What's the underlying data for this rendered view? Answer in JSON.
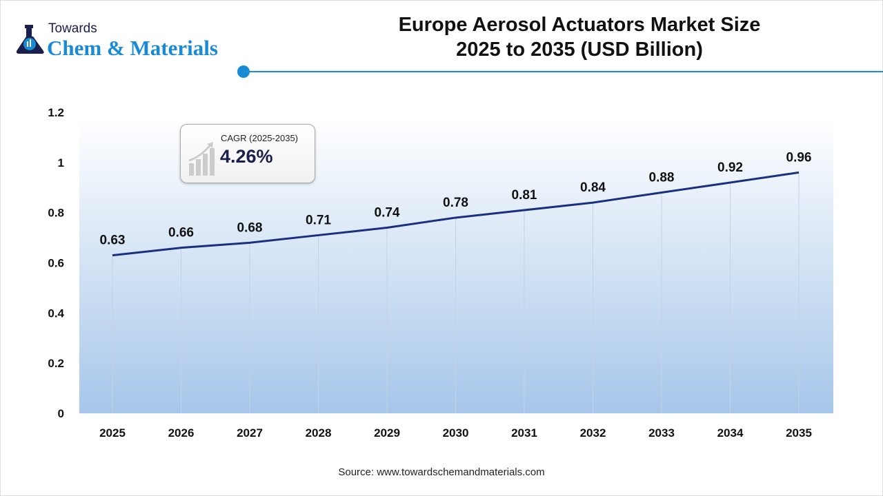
{
  "logo": {
    "line1": "Towards",
    "line2": "Chem & Materials"
  },
  "title": {
    "line1": "Europe Aerosol Actuators Market Size",
    "line2": "2025 to 2035 (USD Billion)"
  },
  "cagr": {
    "label": "CAGR (2025-2035)",
    "value": "4.26%",
    "icon": "growth-bar-chart-icon"
  },
  "source": "Source: www.towardschemandmaterials.com",
  "colors": {
    "line": "#1a2f80",
    "accent": "#1a8ad4",
    "fill_bottom": "#a6c6ea"
  },
  "chart_data": {
    "type": "line",
    "title": "Europe Aerosol Actuators Market Size 2025 to 2035 (USD Billion)",
    "categories": [
      "2025",
      "2026",
      "2027",
      "2028",
      "2029",
      "2030",
      "2031",
      "2032",
      "2033",
      "2034",
      "2035"
    ],
    "values": [
      0.63,
      0.66,
      0.68,
      0.71,
      0.74,
      0.78,
      0.81,
      0.84,
      0.88,
      0.92,
      0.96
    ],
    "data_labels": [
      "0.63",
      "0.66",
      "0.68",
      "0.71",
      "0.74",
      "0.78",
      "0.81",
      "0.84",
      "0.88",
      "0.92",
      "0.96"
    ],
    "yticks": [
      "0",
      "0.2",
      "0.4",
      "0.6",
      "0.8",
      "1",
      "1.2"
    ],
    "ylim": [
      0,
      1.2
    ],
    "xlabel": "",
    "ylabel": "",
    "grid": "vertical",
    "legend": "none"
  }
}
